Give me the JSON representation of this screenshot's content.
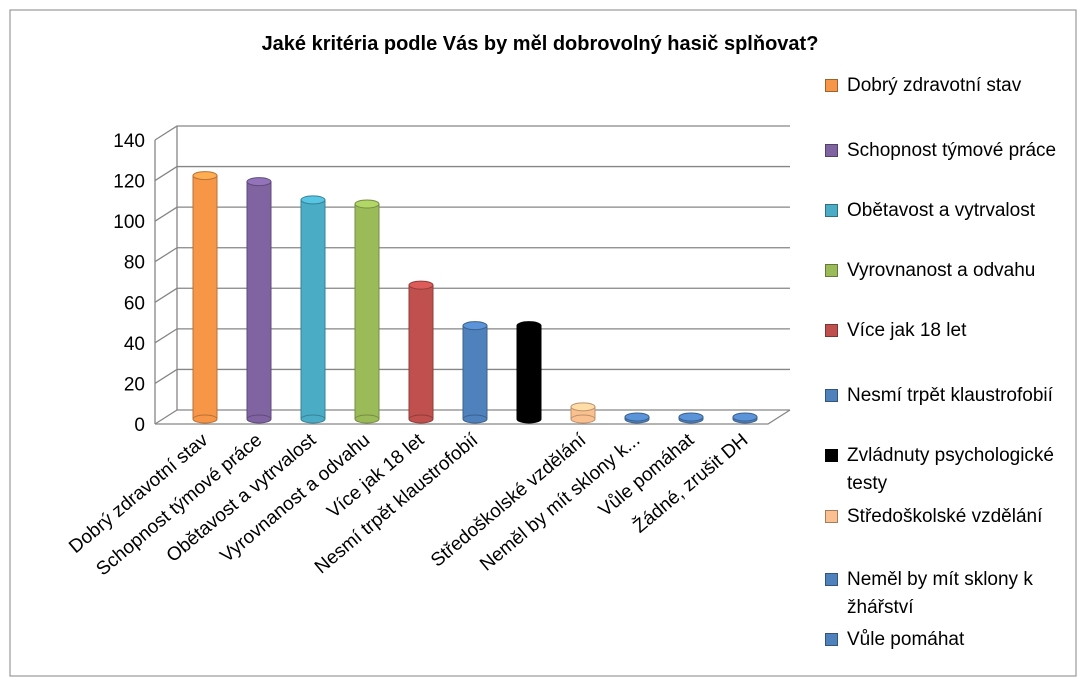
{
  "chart_data": {
    "type": "bar",
    "title": "Jaké kritéria podle Vás by měl dobrovolný hasič splňovat?",
    "categories": [
      "Dobrý zdravotní stav",
      "Schopnost týmové práce",
      "Obětavost a vytrvalost",
      "Vyrovnanost a odvahu",
      "Více jak 18 let",
      "Nesmí trpět klaustrofobií",
      null,
      "Středoškolské vzdělání",
      "Neměl by mít sklony k...",
      "Vůle pomáhat",
      "Žádné, zrušit DH"
    ],
    "values": [
      120,
      117,
      108,
      106,
      66,
      46,
      46,
      6,
      1,
      1,
      1
    ],
    "colors": [
      "#f79646",
      "#8064a2",
      "#4bacc6",
      "#9bbb59",
      "#c0504d",
      "#4f81bd",
      "#000000",
      "#fac090",
      "#4f81bd",
      "#4f81bd",
      "#4f81bd"
    ],
    "legend": [
      {
        "name": "Dobrý zdravotní stav",
        "color": "#f79646"
      },
      {
        "name": "Schopnost týmové práce",
        "color": "#8064a2"
      },
      {
        "name": "Obětavost a vytrvalost",
        "color": "#4bacc6"
      },
      {
        "name": "Vyrovnanost a odvahu",
        "color": "#9bbb59"
      },
      {
        "name": "Více jak 18 let",
        "color": "#c0504d"
      },
      {
        "name": "Nesmí trpět klaustrofobií",
        "color": "#4f81bd"
      },
      {
        "name": "Zvládnuty psychologické testy",
        "color": "#000000"
      },
      {
        "name": "Středoškolské vzdělání",
        "color": "#fac090"
      },
      {
        "name": "Neměl by mít sklony k žhářství",
        "color": "#4f81bd"
      },
      {
        "name": "Vůle pomáhat",
        "color": "#4f81bd"
      }
    ],
    "ylim": [
      0,
      140
    ],
    "yticks": [
      0,
      20,
      40,
      60,
      80,
      100,
      120,
      140
    ],
    "grid": true
  }
}
